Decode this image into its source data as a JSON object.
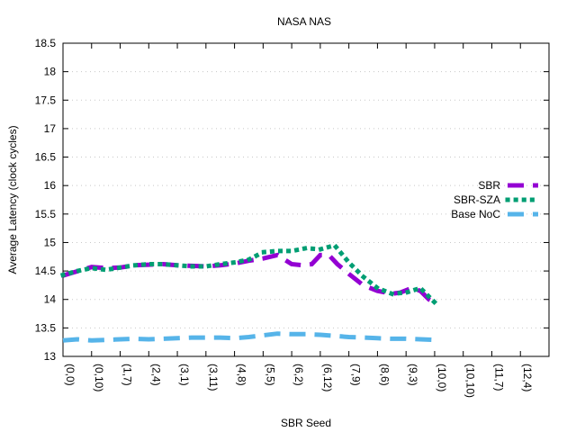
{
  "chart_data": {
    "type": "line",
    "title": "NASA NAS",
    "xlabel": "SBR Seed",
    "ylabel": "Average Latency (clock cycles)",
    "ylim": [
      13,
      18.5
    ],
    "yticks": [
      "13",
      "13.5",
      "14",
      "14.5",
      "15",
      "15.5",
      "16",
      "16.5",
      "17",
      "17.5",
      "18",
      "18.5"
    ],
    "categories": [
      "(0,0)",
      "(0,10)",
      "(1,7)",
      "(2,4)",
      "(3,1)",
      "(3,11)",
      "(4,8)",
      "(5,5)",
      "(6,2)",
      "(6,12)",
      "(7,9)",
      "(8,6)",
      "(9,3)",
      "(10,0)",
      "(10,10)",
      "(11,7)",
      "(12,4)"
    ],
    "x_domain": [
      0,
      17
    ],
    "grid": true,
    "legend_position": "right",
    "series": [
      {
        "name": "SBR",
        "color": "#9400d3",
        "style": "dashed",
        "points": [
          [
            0,
            14.42
          ],
          [
            0.4,
            14.48
          ],
          [
            1,
            14.57
          ],
          [
            1.5,
            14.55
          ],
          [
            2,
            14.56
          ],
          [
            2.5,
            14.6
          ],
          [
            3,
            14.61
          ],
          [
            3.5,
            14.62
          ],
          [
            4,
            14.6
          ],
          [
            4.5,
            14.59
          ],
          [
            5,
            14.58
          ],
          [
            5.5,
            14.6
          ],
          [
            6,
            14.63
          ],
          [
            6.5,
            14.68
          ],
          [
            7,
            14.72
          ],
          [
            7.5,
            14.78
          ],
          [
            8,
            14.62
          ],
          [
            8.4,
            14.6
          ],
          [
            8.7,
            14.62
          ],
          [
            9,
            14.78
          ],
          [
            9.3,
            14.78
          ],
          [
            9.6,
            14.62
          ],
          [
            10,
            14.45
          ],
          [
            10.5,
            14.25
          ],
          [
            11,
            14.15
          ],
          [
            11.5,
            14.1
          ],
          [
            11.8,
            14.12
          ],
          [
            12.2,
            14.2
          ],
          [
            12.5,
            14.15
          ],
          [
            12.8,
            14.0
          ],
          [
            13,
            13.95
          ]
        ]
      },
      {
        "name": "SBR-SZA",
        "color": "#009e73",
        "style": "dotted",
        "points": [
          [
            0,
            14.43
          ],
          [
            0.5,
            14.5
          ],
          [
            1,
            14.55
          ],
          [
            1.5,
            14.52
          ],
          [
            2,
            14.56
          ],
          [
            2.5,
            14.6
          ],
          [
            3,
            14.62
          ],
          [
            3.5,
            14.62
          ],
          [
            4,
            14.6
          ],
          [
            4.5,
            14.58
          ],
          [
            5,
            14.58
          ],
          [
            5.5,
            14.62
          ],
          [
            6,
            14.65
          ],
          [
            6.5,
            14.7
          ],
          [
            7,
            14.83
          ],
          [
            7.5,
            14.85
          ],
          [
            8,
            14.85
          ],
          [
            8.5,
            14.9
          ],
          [
            9,
            14.88
          ],
          [
            9.5,
            14.95
          ],
          [
            10,
            14.65
          ],
          [
            10.5,
            14.4
          ],
          [
            11,
            14.2
          ],
          [
            11.5,
            14.1
          ],
          [
            12,
            14.12
          ],
          [
            12.5,
            14.2
          ],
          [
            13,
            13.95
          ]
        ]
      },
      {
        "name": "Base NoC",
        "color": "#56b4e9",
        "style": "dashed",
        "points": [
          [
            0,
            13.28
          ],
          [
            0.5,
            13.3
          ],
          [
            1,
            13.28
          ],
          [
            1.5,
            13.29
          ],
          [
            2,
            13.3
          ],
          [
            2.5,
            13.31
          ],
          [
            3,
            13.3
          ],
          [
            3.5,
            13.31
          ],
          [
            4,
            13.32
          ],
          [
            4.5,
            13.33
          ],
          [
            5,
            13.33
          ],
          [
            5.5,
            13.33
          ],
          [
            6,
            13.32
          ],
          [
            6.5,
            13.34
          ],
          [
            7,
            13.37
          ],
          [
            7.5,
            13.4
          ],
          [
            8,
            13.39
          ],
          [
            8.5,
            13.39
          ],
          [
            9,
            13.38
          ],
          [
            9.5,
            13.36
          ],
          [
            10,
            13.34
          ],
          [
            10.5,
            13.33
          ],
          [
            11,
            13.32
          ],
          [
            11.5,
            13.31
          ],
          [
            12,
            13.31
          ],
          [
            12.5,
            13.3
          ],
          [
            13,
            13.29
          ]
        ]
      }
    ]
  }
}
